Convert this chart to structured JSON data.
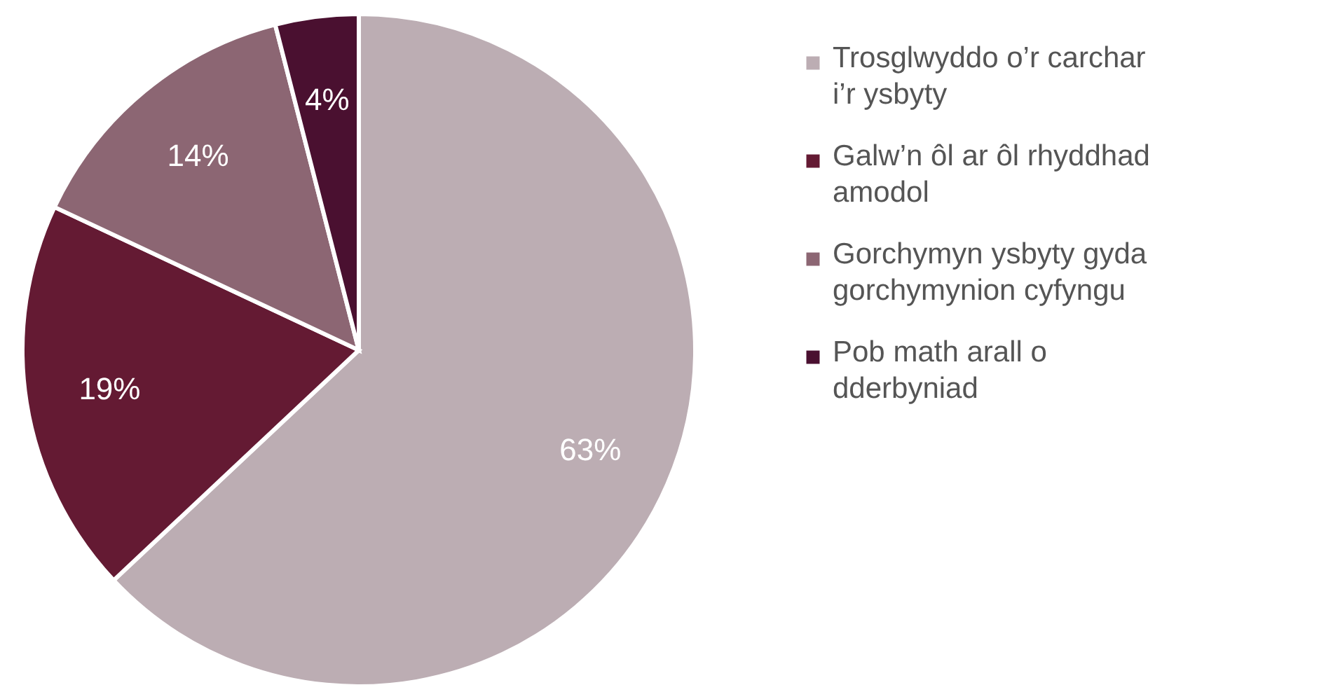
{
  "chart_data": {
    "type": "pie",
    "categories": [
      "Trosglwyddo o’r carchar i’r ysbyty",
      "Galw’n ôl ar ôl rhyddhad amodol",
      "Gorchymyn ysbyty gyda gorchymynion cyfyngu",
      "Pob math arall o dderbyniad"
    ],
    "values": [
      63,
      19,
      14,
      4
    ],
    "colors": [
      "#bcadb3",
      "#641a33",
      "#8c6673",
      "#4a1030"
    ],
    "value_labels": [
      "63%",
      "19%",
      "14%",
      "4%"
    ],
    "legend": "right"
  }
}
